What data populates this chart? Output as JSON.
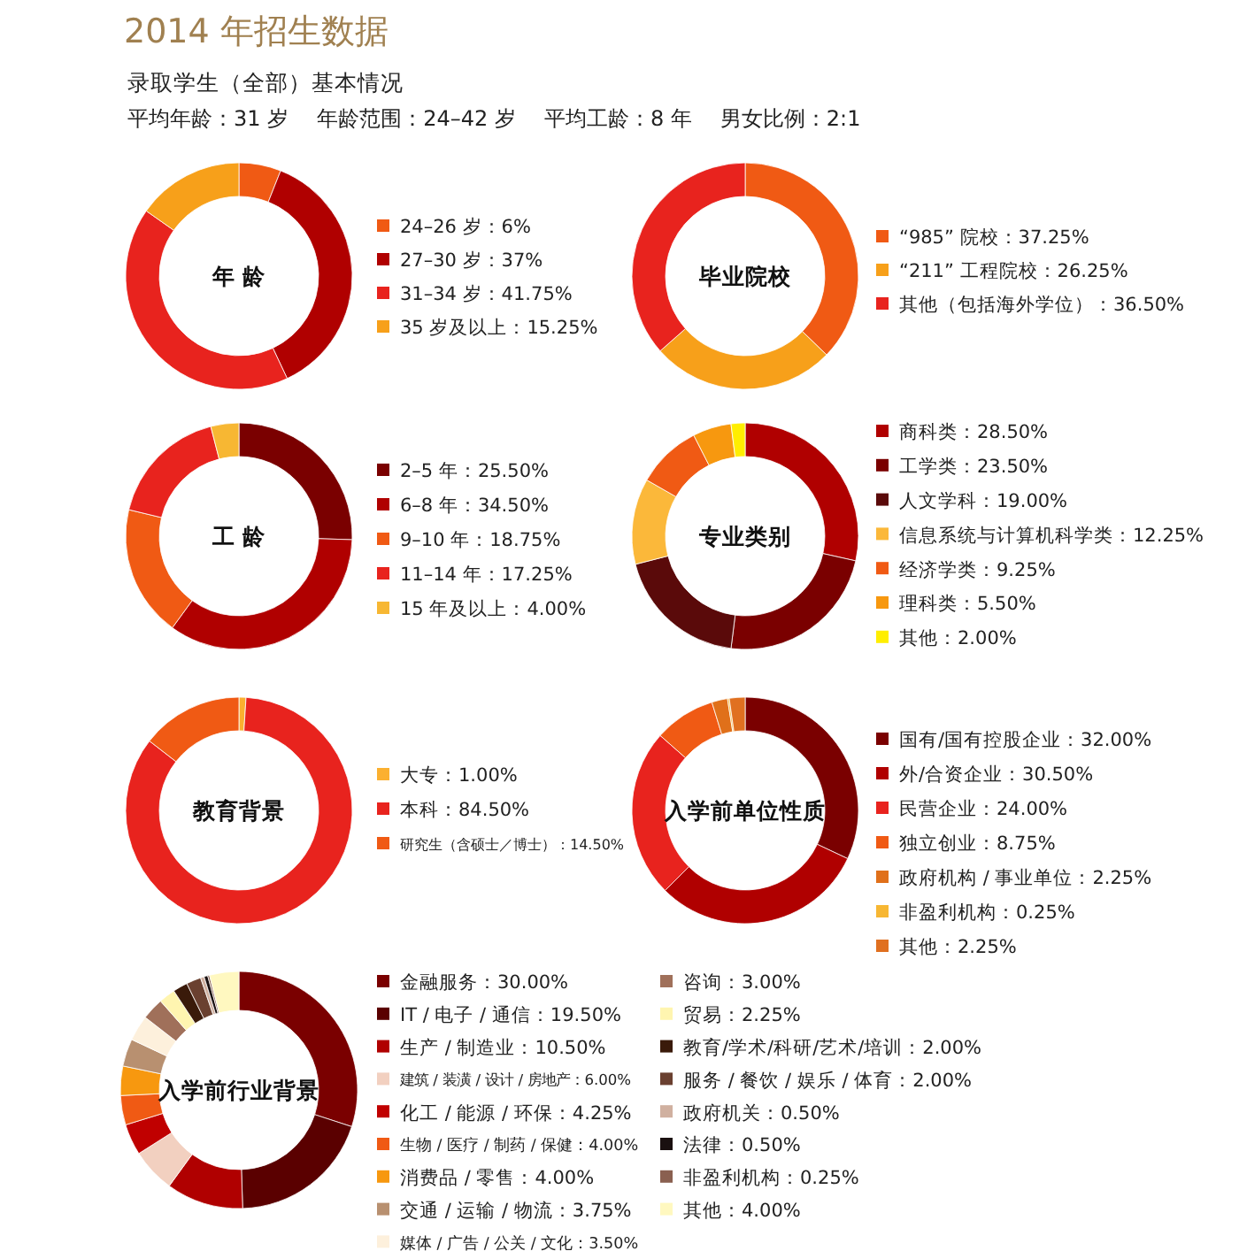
{
  "chart_data": [
    {
      "type": "other",
      "title": "2014 年招生数据",
      "subtitle": "录取学生（全部）基本情况",
      "annotations": [
        "平均年龄：31 岁",
        "年龄范围：24–42 岁",
        "平均工龄：8 年",
        "男女比例：2:1"
      ]
    },
    {
      "type": "donut",
      "title": "年 龄",
      "categories": [
        "24–26 岁",
        "27–30 岁",
        "31–34 岁",
        "35 岁及以上"
      ],
      "values": [
        6,
        37,
        41.75,
        15.25
      ],
      "value_labels": [
        "6%",
        "37%",
        "41.75%",
        "15.25%"
      ],
      "colors": [
        "#f05a14",
        "#b00000",
        "#e8231e",
        "#f7a01a"
      ],
      "legend": "right"
    },
    {
      "type": "donut",
      "title": "毕业院校",
      "categories": [
        "“985” 院校",
        "“211” 工程院校",
        "其他（包括海外学位）"
      ],
      "values": [
        37.25,
        26.25,
        36.5
      ],
      "value_labels": [
        "37.25%",
        "26.25%",
        "36.50%"
      ],
      "colors": [
        "#f05a14",
        "#f7a01a",
        "#e8231e"
      ],
      "legend": "right"
    },
    {
      "type": "donut",
      "title": "工 龄",
      "categories": [
        "2–5 年",
        "6–8 年",
        "9–10 年",
        "11–14 年",
        "15 年及以上"
      ],
      "values": [
        25.5,
        34.5,
        18.75,
        17.25,
        4
      ],
      "value_labels": [
        "25.50%",
        "34.50%",
        "18.75%",
        "17.25%",
        "4.00%"
      ],
      "colors": [
        "#7a0000",
        "#b00000",
        "#f05a14",
        "#e8231e",
        "#f7b733"
      ],
      "legend": "right"
    },
    {
      "type": "donut",
      "title": "专业类别",
      "categories": [
        "商科类",
        "工学类",
        "人文学科",
        "信息系统与计算机科学类",
        "经济学类",
        "理科类",
        "其他"
      ],
      "values": [
        28.5,
        23.5,
        19,
        12.25,
        9.25,
        5.5,
        2
      ],
      "value_labels": [
        "28.50%",
        "23.50%",
        "19.00%",
        "12.25%",
        "9.25%",
        "5.50%",
        "2.00%"
      ],
      "colors": [
        "#b00000",
        "#7a0000",
        "#5a0a0a",
        "#fbb83a",
        "#f05a14",
        "#f7980f",
        "#ffee00"
      ],
      "legend": "right"
    },
    {
      "type": "donut",
      "title": "教育背景",
      "categories": [
        "大专",
        "本科",
        "研究生（含硕士／博士）"
      ],
      "values": [
        1,
        84.5,
        14.5
      ],
      "value_labels": [
        "1.00%",
        "84.50%",
        "14.50%"
      ],
      "colors": [
        "#fbb030",
        "#e8231e",
        "#f05a14"
      ],
      "legend": "right"
    },
    {
      "type": "donut",
      "title": "入学前单位性质",
      "categories": [
        "国有/国有控股企业",
        "外/合资企业",
        "民营企业",
        "独立创业",
        "政府机构 / 事业单位",
        "非盈利机构",
        "其他"
      ],
      "values": [
        32,
        30.5,
        24,
        8.75,
        2.25,
        0.25,
        2.25
      ],
      "value_labels": [
        "32.00%",
        "30.50%",
        "24.00%",
        "8.75%",
        "2.25%",
        "0.25%",
        "2.25%"
      ],
      "colors": [
        "#7a0000",
        "#b00000",
        "#e8231e",
        "#f05a14",
        "#e0701a",
        "#f7b733",
        "#e07020"
      ],
      "legend": "right"
    },
    {
      "type": "donut",
      "title": "入学前行业背景",
      "categories": [
        "金融服务",
        "IT / 电子 / 通信",
        "生产 / 制造业",
        "建筑 / 装潢 / 设计 / 房地产",
        "化工 / 能源 / 环保",
        "生物 / 医疗 / 制药 / 保健",
        "消费品 / 零售",
        "交通 / 运输 / 物流",
        "媒体 / 广告 / 公关 / 文化",
        "咨询",
        "贸易",
        "教育/学术/科研/艺术/培训",
        "服务 / 餐饮 / 娱乐 / 体育",
        "政府机关",
        "法律",
        "非盈利机构",
        "其他"
      ],
      "values": [
        30,
        19.5,
        10.5,
        6,
        4.25,
        4,
        4,
        3.75,
        3.5,
        3,
        2.25,
        2,
        2,
        0.5,
        0.5,
        0.25,
        4
      ],
      "value_labels": [
        "30.00%",
        "19.50%",
        "10.50%",
        "6.00%",
        "4.25%",
        "4.00%",
        "4.00%",
        "3.75%",
        "3.50%",
        "3.00%",
        "2.25%",
        "2.00%",
        "2.00%",
        "0.50%",
        "0.50%",
        "0.25%",
        "4.00%"
      ],
      "colors": [
        "#7a0000",
        "#5a0000",
        "#b00000",
        "#f2d0c0",
        "#c00000",
        "#f05a14",
        "#f7980f",
        "#b89070",
        "#fdf0dc",
        "#a0705a",
        "#fff5b0",
        "#3a1a0a",
        "#6a4030",
        "#d0b0a0",
        "#1a1010",
        "#8a6050",
        "#fff8c0"
      ],
      "legend": "right"
    }
  ]
}
